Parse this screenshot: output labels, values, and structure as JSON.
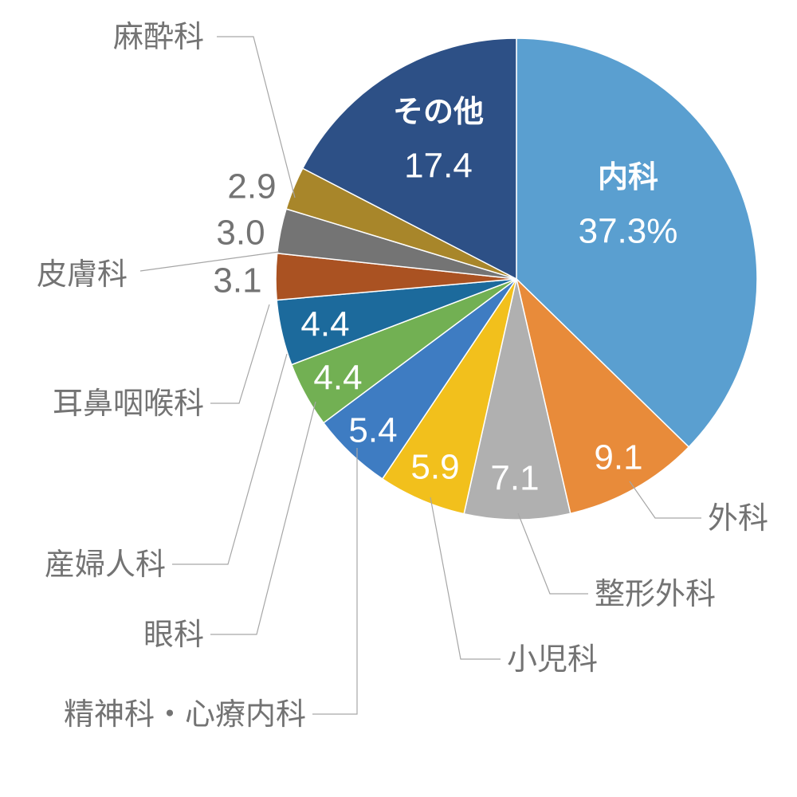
{
  "chart_data": {
    "type": "pie",
    "unit_suffix": "%",
    "start_angle_deg": 0,
    "direction": "clockwise",
    "slices": [
      {
        "label": "内科",
        "value": 37.3,
        "value_text": "37.3%",
        "color": "#5a9fd0",
        "text_color": "#ffffff"
      },
      {
        "label": "外科",
        "value": 9.1,
        "value_text": "9.1",
        "color": "#e88b3a",
        "text_color": "#ffffff"
      },
      {
        "label": "整形外科",
        "value": 7.1,
        "value_text": "7.1",
        "color": "#b0b0b0",
        "text_color": "#ffffff"
      },
      {
        "label": "小児科",
        "value": 5.9,
        "value_text": "5.9",
        "color": "#f2c01c",
        "text_color": "#ffffff"
      },
      {
        "label": "精神科・心療内科",
        "value": 5.4,
        "value_text": "5.4",
        "color": "#3e7cc2",
        "text_color": "#ffffff"
      },
      {
        "label": "眼科",
        "value": 4.4,
        "value_text": "4.4",
        "color": "#72b053",
        "text_color": "#ffffff"
      },
      {
        "label": "産婦人科",
        "value": 4.4,
        "value_text": "4.4",
        "color": "#1c6a9c",
        "text_color": "#ffffff"
      },
      {
        "label": "耳鼻咽喉科",
        "value": 3.1,
        "value_text": "3.1",
        "color": "#aa5222",
        "text_color": "#737373"
      },
      {
        "label": "皮膚科",
        "value": 3.0,
        "value_text": "3.0",
        "color": "#747474",
        "text_color": "#737373"
      },
      {
        "label": "麻酔科",
        "value": 2.9,
        "value_text": "2.9",
        "color": "#a8862a",
        "text_color": "#737373"
      },
      {
        "label": "その他",
        "value": 17.4,
        "value_text": "17.4",
        "color": "#2d5086",
        "text_color": "#ffffff"
      }
    ]
  }
}
